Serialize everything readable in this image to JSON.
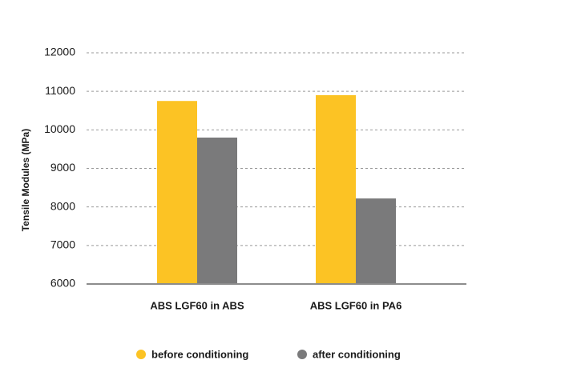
{
  "chart_data": {
    "type": "bar",
    "y_axis_label": "Tensile Modules (MPa)",
    "categories": [
      "ABS LGF60 in ABS",
      "ABS LGF60 in PA6"
    ],
    "series": [
      {
        "name": "before conditioning",
        "color": "#fcc324",
        "values": [
          10750,
          10900
        ]
      },
      {
        "name": "after conditioning",
        "color": "#7a7a7b",
        "values": [
          9800,
          8220
        ]
      }
    ],
    "ylim": [
      6000,
      12000
    ],
    "yticks": [
      6000,
      7000,
      8000,
      9000,
      10000,
      11000,
      12000
    ],
    "grid": true
  }
}
